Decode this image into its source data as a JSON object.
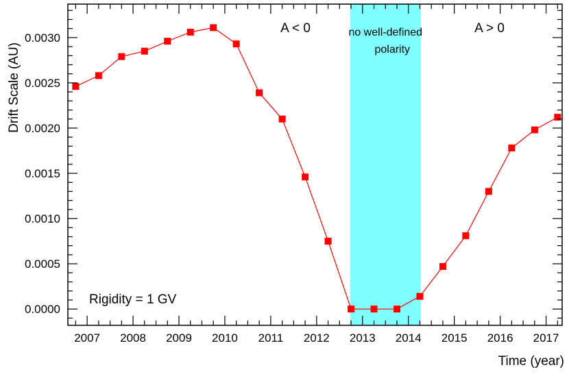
{
  "chart_data": {
    "type": "line",
    "title": "",
    "xlabel": "Time (year)",
    "ylabel": "Drift Scale (AU)",
    "xlim": [
      2006.58,
      2017.35
    ],
    "ylim": [
      -0.00018,
      0.00337
    ],
    "x_ticks": [
      2007,
      2008,
      2009,
      2010,
      2011,
      2012,
      2013,
      2014,
      2015,
      2016,
      2017
    ],
    "x_tick_labels": [
      "2007",
      "2008",
      "2009",
      "2010",
      "2011",
      "2012",
      "2013",
      "2014",
      "2015",
      "2016",
      "2017"
    ],
    "y_ticks": [
      0.0,
      0.0005,
      0.001,
      0.0015,
      0.002,
      0.0025,
      0.003
    ],
    "y_tick_labels": [
      "0.0000",
      "0.0005",
      "0.0010",
      "0.0015",
      "0.0020",
      "0.0025",
      "0.0030"
    ],
    "grid": false,
    "series": [
      {
        "name": "Rigidity = 1 GV",
        "color": "#ff0000",
        "marker": "square",
        "x": [
          2006.75,
          2007.25,
          2007.75,
          2008.25,
          2008.75,
          2009.25,
          2009.75,
          2010.25,
          2010.75,
          2011.25,
          2011.75,
          2012.25,
          2012.75,
          2013.25,
          2013.75,
          2014.25,
          2014.75,
          2015.25,
          2015.75,
          2016.25,
          2016.75,
          2017.25
        ],
        "y": [
          0.00246,
          0.00258,
          0.00279,
          0.00285,
          0.00296,
          0.00306,
          0.00311,
          0.00293,
          0.00239,
          0.0021,
          0.00146,
          0.00075,
          0.0,
          0.0,
          0.0,
          0.00014,
          0.00047,
          0.00081,
          0.0013,
          0.00178,
          0.00198,
          0.00212
        ]
      }
    ],
    "shaded_region": {
      "x_start": 2012.73,
      "x_end": 2014.27,
      "color": "#7fffff",
      "label_line1": "no well-defined",
      "label_line2": "polarity"
    },
    "annotations": {
      "left_polarity": "A < 0",
      "right_polarity": "A > 0",
      "rigidity": "Rigidity = 1 GV"
    }
  }
}
